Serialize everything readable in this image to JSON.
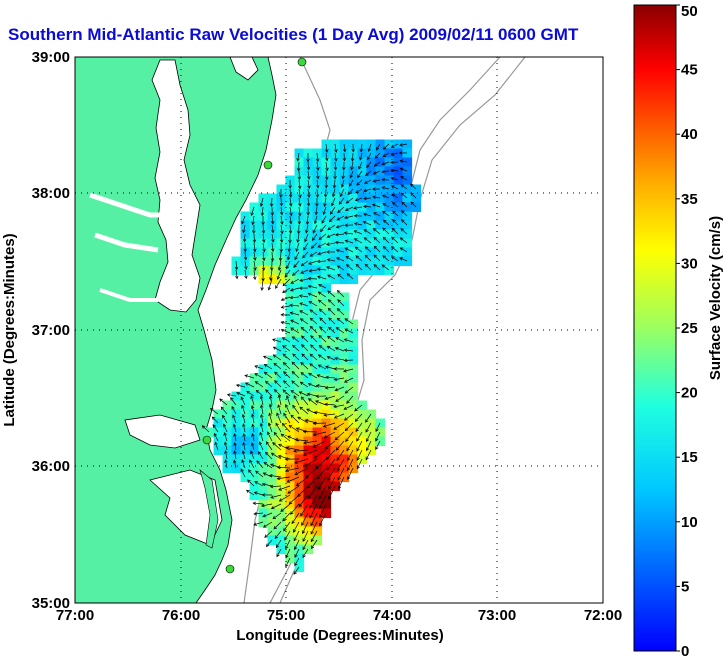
{
  "title": "Southern Mid-Atlantic Raw Velocities (1 Day Avg) 2009/02/11 0600 GMT",
  "map": {
    "xlabel": "Longitude (Degrees:Minutes)",
    "ylabel": "Latitude (Degrees:Minutes)",
    "xticks": [
      "77:00",
      "76:00",
      "75:00",
      "74:00",
      "73:00",
      "72:00"
    ],
    "yticks": [
      "39:00",
      "38:00",
      "37:00",
      "36:00",
      "35:00"
    ],
    "xlim": [
      -77,
      -72
    ],
    "ylim": [
      35,
      39
    ],
    "grid": true
  },
  "colorbar": {
    "label": "Surface Velocity (cm/s)",
    "ticks": [
      "0",
      "5",
      "10",
      "15",
      "20",
      "25",
      "30",
      "35",
      "40",
      "45",
      "50"
    ],
    "range": [
      0,
      50
    ]
  },
  "colors": {
    "land": "#55f0a3",
    "title": "#0b0bd8",
    "station": "#3ad83a"
  }
}
